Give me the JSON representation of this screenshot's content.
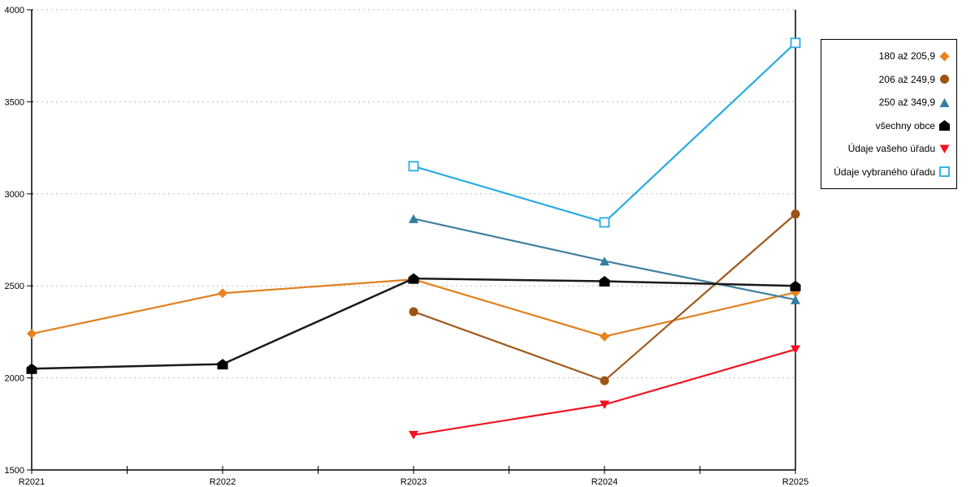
{
  "chart_data": {
    "type": "line",
    "title": "",
    "xlabel": "",
    "ylabel": "",
    "x_categories": [
      "R2021",
      "R2022",
      "R2023",
      "R2024",
      "R2025"
    ],
    "y_axis": {
      "min": 1500,
      "max": 4000,
      "step": 500,
      "tick_labels": [
        "1500",
        "2000",
        "2500",
        "3000",
        "3500",
        "4000"
      ]
    },
    "grid": "horizontal-dotted",
    "gridline_color": "#bbbbbb",
    "axis_color": "#000000",
    "legend_position": "right-box",
    "series": [
      {
        "name": "180 až 205,9",
        "marker": "diamond",
        "color": "#E8821E",
        "line_color": "#E2801E",
        "values": [
          2240,
          2460,
          2535,
          2225,
          2465
        ]
      },
      {
        "name": "206 až 249,9",
        "marker": "circle",
        "color": "#9C5414",
        "line_color": "#A05B1E",
        "values": [
          null,
          null,
          2360,
          1985,
          2890
        ]
      },
      {
        "name": "250 až 349,9",
        "marker": "triangle-up",
        "color": "#337E9E",
        "line_color": "#3F80A0",
        "values": [
          null,
          null,
          2865,
          2635,
          2425
        ]
      },
      {
        "name": "všechny obce",
        "marker": "pentagon",
        "color": "#000000",
        "line_color": "#1a1a1a",
        "values": [
          2050,
          2075,
          2540,
          2525,
          2500
        ]
      },
      {
        "name": "Údaje vašeho úřadu",
        "marker": "triangle-down",
        "color": "#F50F1E",
        "line_color": "#F2121F",
        "values": [
          null,
          null,
          1690,
          1855,
          2155
        ]
      },
      {
        "name": "Údaje vybraného úřadu",
        "marker": "square-open",
        "color": "#29ABE2",
        "line_color": "#29ABE2",
        "values": [
          null,
          null,
          3150,
          2845,
          3820
        ]
      }
    ]
  }
}
